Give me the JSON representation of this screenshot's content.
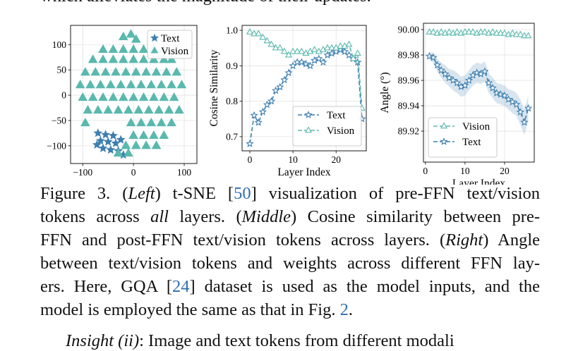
{
  "top_text": "which alleviates the magnitude of their updates.",
  "chart_data": [
    {
      "type": "scatter",
      "legend": "upper right",
      "grid": true,
      "xlim": [
        -124,
        125
      ],
      "ylim": [
        -135,
        138
      ],
      "xticks": [
        {
          "value": -100,
          "label": "−100"
        },
        0,
        100
      ],
      "yticks": [
        {
          "value": -100,
          "label": "−100"
        },
        {
          "value": -50,
          "label": "−50"
        },
        0,
        50,
        100
      ],
      "series": [
        {
          "name": "Text",
          "color": "#3d7fb0",
          "marker": "star",
          "x": [
            -70,
            -55,
            -40,
            -65,
            -50,
            -35,
            -25,
            -60,
            -45,
            -30,
            -20,
            -72
          ],
          "values": [
            -75,
            -78,
            -80,
            -90,
            -92,
            -95,
            -88,
            -105,
            -108,
            -110,
            -118,
            -98
          ]
        },
        {
          "name": "Vision",
          "color": "#5ab8ad",
          "marker": "triangle",
          "x": [
            -20,
            -5,
            5,
            -60,
            -40,
            -20,
            0,
            20,
            40,
            60,
            -80,
            -60,
            -40,
            -20,
            0,
            20,
            40,
            60,
            75,
            -95,
            -75,
            -55,
            -35,
            -15,
            5,
            25,
            45,
            65,
            85,
            -105,
            -85,
            -65,
            -45,
            -25,
            -5,
            15,
            35,
            55,
            75,
            95,
            -100,
            -80,
            -60,
            -40,
            -20,
            0,
            20,
            40,
            60,
            80,
            -90,
            -70,
            -50,
            -30,
            -10,
            10,
            30,
            50,
            70,
            90,
            -95,
            -5,
            15,
            35,
            55,
            75,
            0,
            20,
            40,
            60,
            -15,
            5,
            25,
            45,
            -30,
            -10
          ],
          "values": [
            115,
            120,
            110,
            90,
            90,
            90,
            90,
            90,
            90,
            90,
            70,
            70,
            70,
            70,
            70,
            70,
            70,
            70,
            70,
            45,
            45,
            45,
            45,
            45,
            45,
            45,
            45,
            45,
            45,
            20,
            20,
            20,
            20,
            20,
            20,
            20,
            20,
            20,
            20,
            20,
            -5,
            -5,
            -5,
            -5,
            -5,
            -5,
            -5,
            -5,
            -5,
            -5,
            -30,
            -30,
            -30,
            -30,
            -30,
            -30,
            -30,
            -30,
            -30,
            -30,
            -55,
            -55,
            -55,
            -55,
            -55,
            -55,
            -80,
            -80,
            -80,
            -80,
            -100,
            -100,
            -100,
            -100,
            -115,
            -115
          ]
        }
      ]
    },
    {
      "type": "line",
      "legend": "lower right",
      "grid": true,
      "xlabel": "Layer Index",
      "ylabel": "Cosine Similarity",
      "xlim": [
        -1.8,
        27
      ],
      "ylim": [
        0.66,
        1.014
      ],
      "xticks": [
        0,
        10,
        20
      ],
      "yticks": [
        0.7,
        0.8,
        0.9,
        {
          "value": 1.0,
          "label": "1.0"
        }
      ],
      "x": [
        0,
        1,
        2,
        3,
        4,
        5,
        6,
        7,
        8,
        9,
        10,
        11,
        12,
        13,
        14,
        15,
        16,
        17,
        18,
        19,
        20,
        21,
        22,
        23,
        24,
        25,
        26
      ],
      "series": [
        {
          "name": "Text",
          "color": "#3d7fb0",
          "marker": "star",
          "values": [
            0.68,
            0.76,
            0.74,
            0.77,
            0.79,
            0.8,
            0.83,
            0.84,
            0.86,
            0.88,
            0.9,
            0.91,
            0.91,
            0.905,
            0.9,
            0.915,
            0.92,
            0.91,
            0.93,
            0.935,
            0.94,
            0.945,
            0.94,
            0.93,
            0.92,
            0.91,
            0.75
          ]
        },
        {
          "name": "Vision",
          "color": "#5ab8ad",
          "marker": "triangle",
          "values": [
            0.995,
            0.99,
            0.99,
            0.98,
            0.97,
            0.96,
            0.95,
            0.95,
            0.94,
            0.93,
            0.94,
            0.94,
            0.94,
            0.935,
            0.94,
            0.945,
            0.94,
            0.945,
            0.95,
            0.95,
            0.95,
            0.955,
            0.955,
            0.96,
            0.92,
            0.935,
            0.78
          ]
        }
      ]
    },
    {
      "type": "line",
      "legend": "lower left",
      "grid": true,
      "xlabel": "Layer Index",
      "ylabel": "Angle (°)",
      "xlim": [
        -0.5,
        27.5
      ],
      "ylim": [
        89.8956,
        90.005
      ],
      "xticks": [
        0,
        10,
        20
      ],
      "yticks": [
        89.92,
        89.94,
        89.96,
        89.98,
        {
          "value": 90.0,
          "label": "90.00"
        }
      ],
      "x": [
        1,
        2,
        3,
        4,
        5,
        6,
        7,
        8,
        9,
        10,
        11,
        12,
        13,
        14,
        15,
        16,
        17,
        18,
        19,
        20,
        21,
        22,
        23,
        24,
        25,
        26
      ],
      "series": [
        {
          "name": "Vision",
          "color": "#5ab8ad",
          "marker": "triangle",
          "values": [
            89.998,
            89.998,
            89.997,
            89.998,
            89.997,
            89.998,
            89.997,
            89.998,
            89.997,
            89.998,
            89.998,
            89.998,
            89.997,
            89.998,
            89.998,
            89.997,
            89.998,
            89.997,
            89.997,
            89.997,
            89.996,
            89.997,
            89.996,
            89.996,
            89.995,
            89.995
          ]
        },
        {
          "name": "Text",
          "color": "#3d7fb0",
          "marker": "star",
          "values": [
            89.979,
            89.978,
            89.972,
            89.968,
            89.965,
            89.962,
            89.96,
            89.958,
            89.955,
            89.956,
            89.96,
            89.964,
            89.966,
            89.965,
            89.967,
            89.958,
            89.954,
            89.95,
            89.949,
            89.948,
            89.945,
            89.943,
            89.941,
            89.935,
            89.927,
            89.938
          ],
          "std": [
            0.003,
            0.004,
            0.005,
            0.006,
            0.007,
            0.007,
            0.008,
            0.008,
            0.008,
            0.008,
            0.008,
            0.008,
            0.008,
            0.008,
            0.008,
            0.008,
            0.008,
            0.008,
            0.008,
            0.008,
            0.008,
            0.009,
            0.009,
            0.01,
            0.01,
            0.01
          ]
        }
      ]
    }
  ],
  "caption": {
    "lines": [
      [
        "Figure 3.  (",
        "Left",
        ") t-SNE [",
        "50",
        "] visualization of pre-FFN text/vision"
      ],
      [
        "tokens across ",
        "all",
        " layers.  (",
        "Middle",
        ") Cosine similarity between pre-"
      ],
      [
        "FFN and post-FFN text/vision tokens across layers.  (",
        "Right",
        ") Angle"
      ],
      [
        "between text/vision tokens and weights across different FFN lay-"
      ],
      [
        "ers.  Here, GQA [",
        "24",
        "] dataset is used as the model inputs, and the"
      ],
      [
        "model is employed the same as that in Fig. ",
        "2",
        "."
      ]
    ]
  },
  "bottom_text": [
    "Insight (ii)",
    ": Image and text tokens from different modali"
  ]
}
